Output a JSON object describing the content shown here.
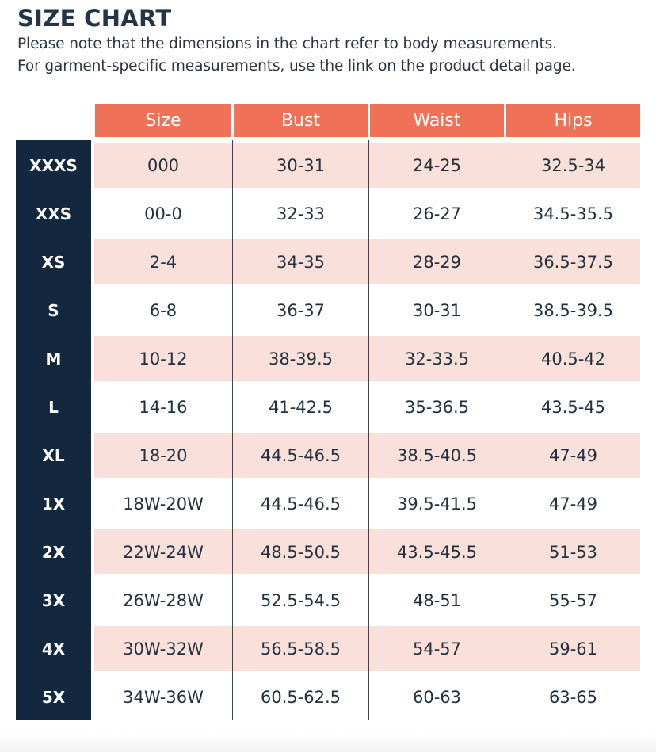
{
  "title": "SIZE CHART",
  "note_line1": "Please note that the dimensions in the chart refer to body measurements.",
  "note_line2": "For garment-specific measurements, use the link on the product detail page.",
  "colors": {
    "header": "#ee7158",
    "label_column": "#13283f",
    "row_shade": "#f9e0da"
  },
  "columns": [
    "Size",
    "Bust",
    "Waist",
    "Hips"
  ],
  "rows": [
    {
      "label": "XXXS",
      "size": "000",
      "bust": "30-31",
      "waist": "24-25",
      "hips": "32.5-34"
    },
    {
      "label": "XXS",
      "size": "00-0",
      "bust": "32-33",
      "waist": "26-27",
      "hips": "34.5-35.5"
    },
    {
      "label": "XS",
      "size": "2-4",
      "bust": "34-35",
      "waist": "28-29",
      "hips": "36.5-37.5"
    },
    {
      "label": "S",
      "size": "6-8",
      "bust": "36-37",
      "waist": "30-31",
      "hips": "38.5-39.5"
    },
    {
      "label": "M",
      "size": "10-12",
      "bust": "38-39.5",
      "waist": "32-33.5",
      "hips": "40.5-42"
    },
    {
      "label": "L",
      "size": "14-16",
      "bust": "41-42.5",
      "waist": "35-36.5",
      "hips": "43.5-45"
    },
    {
      "label": "XL",
      "size": "18-20",
      "bust": "44.5-46.5",
      "waist": "38.5-40.5",
      "hips": "47-49"
    },
    {
      "label": "1X",
      "size": "18W-20W",
      "bust": "44.5-46.5",
      "waist": "39.5-41.5",
      "hips": "47-49"
    },
    {
      "label": "2X",
      "size": "22W-24W",
      "bust": "48.5-50.5",
      "waist": "43.5-45.5",
      "hips": "51-53"
    },
    {
      "label": "3X",
      "size": "26W-28W",
      "bust": "52.5-54.5",
      "waist": "48-51",
      "hips": "55-57"
    },
    {
      "label": "4X",
      "size": "30W-32W",
      "bust": "56.5-58.5",
      "waist": "54-57",
      "hips": "59-61"
    },
    {
      "label": "5X",
      "size": "34W-36W",
      "bust": "60.5-62.5",
      "waist": "60-63",
      "hips": "63-65"
    }
  ]
}
